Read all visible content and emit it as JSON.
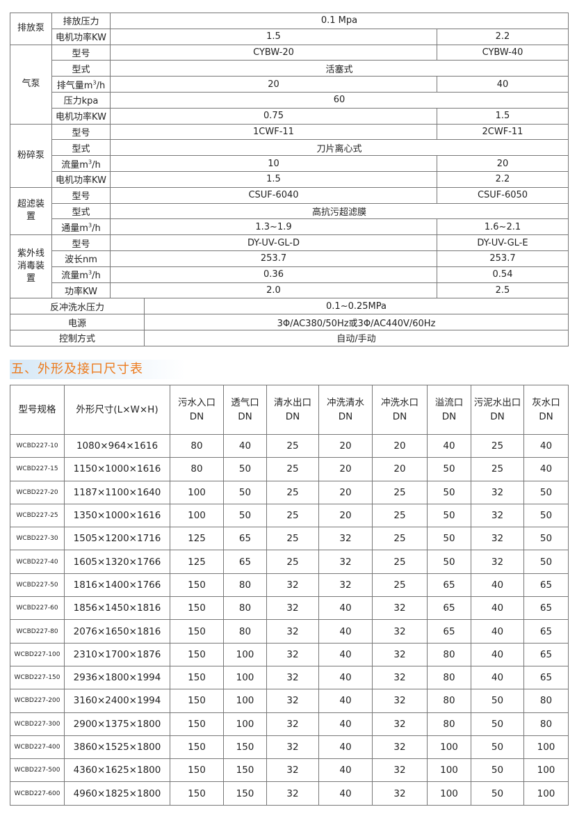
{
  "spec_table": {
    "groups": [
      {
        "label": "排放泵",
        "rows": [
          {
            "label": "排放压力",
            "values": [
              "0.1 Mpa"
            ]
          },
          {
            "label": "电机功率KW",
            "values": [
              "1.5",
              "2.2"
            ]
          }
        ]
      },
      {
        "label": "气泵",
        "rows": [
          {
            "label": "型号",
            "values": [
              "CYBW-20",
              "CYBW-40"
            ]
          },
          {
            "label": "型式",
            "values": [
              "活塞式"
            ]
          },
          {
            "label": "排气量m³/h",
            "values": [
              "20",
              "40"
            ]
          },
          {
            "label": "压力kpa",
            "values": [
              "60"
            ]
          },
          {
            "label": "电机功率KW",
            "values": [
              "0.75",
              "1.5"
            ]
          }
        ]
      },
      {
        "label": "粉碎泵",
        "rows": [
          {
            "label": "型号",
            "values": [
              "1CWF-11",
              "2CWF-11"
            ]
          },
          {
            "label": "型式",
            "values": [
              "刀片离心式"
            ]
          },
          {
            "label": "流量m³/h",
            "values": [
              "10",
              "20"
            ]
          },
          {
            "label": "电机功率KW",
            "values": [
              "1.5",
              "2.2"
            ]
          }
        ]
      },
      {
        "label": "超滤装置",
        "rows": [
          {
            "label": "型号",
            "values": [
              "CSUF-6040",
              "CSUF-6050"
            ]
          },
          {
            "label": "型式",
            "values": [
              "高抗污超滤膜"
            ]
          },
          {
            "label": "通量m³/h",
            "values": [
              "1.3~1.9",
              "1.6~2.1"
            ]
          }
        ]
      },
      {
        "label": "紫外线消毒装置",
        "rows": [
          {
            "label": "型号",
            "values": [
              "DY-UV-GL-D",
              "DY-UV-GL-E"
            ]
          },
          {
            "label": "波长nm",
            "values": [
              "253.7",
              "253.7"
            ]
          },
          {
            "label": "流量m³/h",
            "values": [
              "0.36",
              "0.54"
            ]
          },
          {
            "label": "功率KW",
            "values": [
              "2.0",
              "2.5"
            ]
          }
        ]
      }
    ],
    "footer_rows": [
      {
        "label": "反冲洗水压力",
        "value": "0.1~0.25MPa"
      },
      {
        "label": "电源",
        "value": "3Φ/AC380/50Hz或3Φ/AC440V/60Hz"
      },
      {
        "label": "控制方式",
        "value": "自动/手动"
      }
    ]
  },
  "section_title": "五、外形及接口尺寸表",
  "dim_table": {
    "headers": [
      "型号规格",
      "外形尺寸(L×W×H)",
      "污水入口 DN",
      "透气口 DN",
      "清水出口 DN",
      "冲洗清水 DN",
      "冲洗水口 DN",
      "溢流口 DN",
      "污泥水出口 DN",
      "灰水口 DN"
    ],
    "rows": [
      [
        "WCBD227-10",
        "1080×964×1616",
        "80",
        "40",
        "25",
        "20",
        "20",
        "40",
        "25",
        "40"
      ],
      [
        "WCBD227-15",
        "1150×1000×1616",
        "80",
        "50",
        "25",
        "20",
        "20",
        "50",
        "25",
        "40"
      ],
      [
        "WCBD227-20",
        "1187×1100×1640",
        "100",
        "50",
        "25",
        "20",
        "25",
        "50",
        "32",
        "50"
      ],
      [
        "WCBD227-25",
        "1350×1000×1616",
        "100",
        "50",
        "25",
        "20",
        "25",
        "50",
        "32",
        "50"
      ],
      [
        "WCBD227-30",
        "1505×1200×1716",
        "125",
        "65",
        "25",
        "32",
        "25",
        "50",
        "32",
        "50"
      ],
      [
        "WCBD227-40",
        "1605×1320×1766",
        "125",
        "65",
        "25",
        "32",
        "25",
        "50",
        "32",
        "50"
      ],
      [
        "WCBD227-50",
        "1816×1400×1766",
        "150",
        "80",
        "32",
        "32",
        "25",
        "65",
        "40",
        "65"
      ],
      [
        "WCBD227-60",
        "1856×1450×1816",
        "150",
        "80",
        "32",
        "40",
        "32",
        "65",
        "40",
        "65"
      ],
      [
        "WCBD227-80",
        "2076×1650×1816",
        "150",
        "80",
        "32",
        "40",
        "32",
        "65",
        "40",
        "65"
      ],
      [
        "WCBD227-100",
        "2310×1700×1876",
        "150",
        "100",
        "32",
        "40",
        "32",
        "80",
        "40",
        "65"
      ],
      [
        "WCBD227-150",
        "2936×1800×1994",
        "150",
        "100",
        "32",
        "40",
        "32",
        "80",
        "40",
        "65"
      ],
      [
        "WCBD227-200",
        "3160×2400×1994",
        "150",
        "100",
        "32",
        "40",
        "32",
        "80",
        "50",
        "80"
      ],
      [
        "WCBD227-300",
        "2900×1375×1800",
        "150",
        "100",
        "32",
        "40",
        "32",
        "80",
        "50",
        "80"
      ],
      [
        "WCBD227-400",
        "3860×1525×1800",
        "150",
        "150",
        "32",
        "40",
        "32",
        "100",
        "50",
        "100"
      ],
      [
        "WCBD227-500",
        "4360×1625×1800",
        "150",
        "150",
        "32",
        "40",
        "32",
        "100",
        "50",
        "100"
      ],
      [
        "WCBD227-600",
        "4960×1825×1800",
        "150",
        "150",
        "32",
        "40",
        "32",
        "100",
        "50",
        "100"
      ]
    ]
  }
}
